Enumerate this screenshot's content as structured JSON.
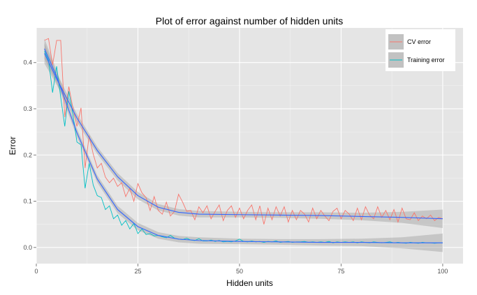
{
  "chart_data": {
    "type": "line",
    "title": "Plot of error against number of hidden units",
    "xlabel": "Hidden units",
    "ylabel": "Error",
    "xlim": [
      0,
      105
    ],
    "ylim": [
      -0.035,
      0.475
    ],
    "x_ticks": [
      {
        "value": 0,
        "label": "0"
      },
      {
        "value": 25,
        "label": "25"
      },
      {
        "value": 50,
        "label": "50"
      },
      {
        "value": 75,
        "label": "75"
      },
      {
        "value": 100,
        "label": "100"
      }
    ],
    "y_ticks": [
      {
        "value": 0.0,
        "label": "0.0"
      },
      {
        "value": 0.1,
        "label": "0.1"
      },
      {
        "value": 0.2,
        "label": "0.2"
      },
      {
        "value": 0.3,
        "label": "0.3"
      },
      {
        "value": 0.4,
        "label": "0.4"
      }
    ],
    "grid": true,
    "legend_position": "top-right",
    "colors": {
      "panel": "#e5e5e5",
      "grid_major": "#ffffff",
      "grid_minor": "#f2f2f2",
      "cv": "#f8766d",
      "training": "#00bfc4",
      "smooth": "#3366ff",
      "band": "#999999"
    },
    "series": [
      {
        "name": "CV error",
        "x": [
          2,
          3,
          4,
          5,
          6,
          7,
          8,
          9,
          10,
          11,
          12,
          13,
          14,
          15,
          16,
          17,
          18,
          19,
          20,
          21,
          22,
          23,
          24,
          25,
          26,
          27,
          28,
          29,
          30,
          31,
          32,
          33,
          34,
          35,
          36,
          37,
          38,
          39,
          40,
          41,
          42,
          43,
          44,
          45,
          46,
          47,
          48,
          49,
          50,
          51,
          52,
          53,
          54,
          55,
          56,
          57,
          58,
          59,
          60,
          61,
          62,
          63,
          64,
          65,
          66,
          67,
          68,
          69,
          70,
          71,
          72,
          73,
          74,
          75,
          76,
          77,
          78,
          79,
          80,
          81,
          82,
          83,
          84,
          85,
          86,
          87,
          88,
          89,
          90,
          91,
          92,
          93,
          94,
          95,
          96,
          97,
          98,
          99,
          100
        ],
        "values": [
          0.448,
          0.452,
          0.395,
          0.448,
          0.448,
          0.282,
          0.348,
          0.302,
          0.262,
          0.302,
          0.172,
          0.242,
          0.202,
          0.172,
          0.182,
          0.152,
          0.14,
          0.15,
          0.132,
          0.14,
          0.11,
          0.128,
          0.1,
          0.138,
          0.118,
          0.108,
          0.08,
          0.11,
          0.08,
          0.072,
          0.098,
          0.068,
          0.078,
          0.115,
          0.098,
          0.078,
          0.08,
          0.06,
          0.088,
          0.075,
          0.09,
          0.062,
          0.078,
          0.092,
          0.058,
          0.08,
          0.09,
          0.065,
          0.085,
          0.062,
          0.08,
          0.092,
          0.06,
          0.09,
          0.05,
          0.085,
          0.06,
          0.088,
          0.068,
          0.088,
          0.055,
          0.08,
          0.06,
          0.08,
          0.072,
          0.055,
          0.085,
          0.062,
          0.08,
          0.068,
          0.058,
          0.078,
          0.085,
          0.062,
          0.08,
          0.072,
          0.058,
          0.085,
          0.06,
          0.088,
          0.07,
          0.062,
          0.088,
          0.065,
          0.08,
          0.06,
          0.082,
          0.055,
          0.085,
          0.062,
          0.06,
          0.075,
          0.058,
          0.068,
          0.062,
          0.07,
          0.058,
          0.065,
          0.062
        ]
      },
      {
        "name": "Training error",
        "x": [
          2,
          3,
          4,
          5,
          6,
          7,
          8,
          9,
          10,
          11,
          12,
          13,
          14,
          15,
          16,
          17,
          18,
          19,
          20,
          21,
          22,
          23,
          24,
          25,
          26,
          27,
          28,
          29,
          30,
          31,
          32,
          33,
          34,
          35,
          36,
          37,
          38,
          39,
          40,
          41,
          42,
          43,
          44,
          45,
          46,
          47,
          48,
          49,
          50,
          51,
          52,
          53,
          54,
          55,
          56,
          57,
          58,
          59,
          60,
          61,
          62,
          63,
          64,
          65,
          66,
          67,
          68,
          69,
          70,
          71,
          72,
          73,
          74,
          75,
          76,
          77,
          78,
          79,
          80,
          81,
          82,
          83,
          84,
          85,
          86,
          87,
          88,
          89,
          90,
          91,
          92,
          93,
          94,
          95,
          96,
          97,
          98,
          99,
          100
        ],
        "values": [
          0.425,
          0.405,
          0.335,
          0.392,
          0.325,
          0.262,
          0.338,
          0.288,
          0.228,
          0.222,
          0.128,
          0.182,
          0.135,
          0.112,
          0.108,
          0.082,
          0.09,
          0.062,
          0.07,
          0.048,
          0.058,
          0.04,
          0.052,
          0.03,
          0.04,
          0.028,
          0.03,
          0.025,
          0.026,
          0.023,
          0.021,
          0.026,
          0.02,
          0.018,
          0.017,
          0.02,
          0.016,
          0.015,
          0.019,
          0.014,
          0.014,
          0.016,
          0.013,
          0.015,
          0.012,
          0.013,
          0.012,
          0.014,
          0.018,
          0.013,
          0.012,
          0.014,
          0.012,
          0.013,
          0.011,
          0.013,
          0.012,
          0.014,
          0.011,
          0.012,
          0.013,
          0.011,
          0.012,
          0.012,
          0.013,
          0.011,
          0.012,
          0.011,
          0.012,
          0.011,
          0.013,
          0.01,
          0.012,
          0.011,
          0.012,
          0.011,
          0.012,
          0.01,
          0.012,
          0.011,
          0.01,
          0.012,
          0.011,
          0.01,
          0.011,
          0.012,
          0.01,
          0.011,
          0.01,
          0.009,
          0.011,
          0.01,
          0.009,
          0.011,
          0.01,
          0.01,
          0.009,
          0.01,
          0.01
        ]
      }
    ],
    "smoothers": [
      {
        "series": "CV error",
        "x": [
          2,
          5,
          10,
          15,
          20,
          25,
          30,
          35,
          40,
          50,
          60,
          70,
          80,
          90,
          100
        ],
        "values": [
          0.42,
          0.365,
          0.28,
          0.21,
          0.153,
          0.112,
          0.087,
          0.076,
          0.072,
          0.071,
          0.07,
          0.069,
          0.067,
          0.065,
          0.062
        ],
        "band_halfwidth": [
          0.022,
          0.013,
          0.009,
          0.008,
          0.008,
          0.008,
          0.007,
          0.007,
          0.007,
          0.006,
          0.006,
          0.007,
          0.008,
          0.012,
          0.02
        ]
      },
      {
        "series": "Training error",
        "x": [
          2,
          5,
          10,
          15,
          20,
          25,
          30,
          35,
          40,
          50,
          60,
          70,
          80,
          90,
          100
        ],
        "values": [
          0.43,
          0.37,
          0.248,
          0.148,
          0.082,
          0.045,
          0.026,
          0.018,
          0.015,
          0.013,
          0.012,
          0.011,
          0.011,
          0.01,
          0.01
        ],
        "band_halfwidth": [
          0.022,
          0.013,
          0.009,
          0.008,
          0.008,
          0.008,
          0.007,
          0.007,
          0.007,
          0.006,
          0.006,
          0.007,
          0.008,
          0.012,
          0.02
        ]
      }
    ]
  }
}
